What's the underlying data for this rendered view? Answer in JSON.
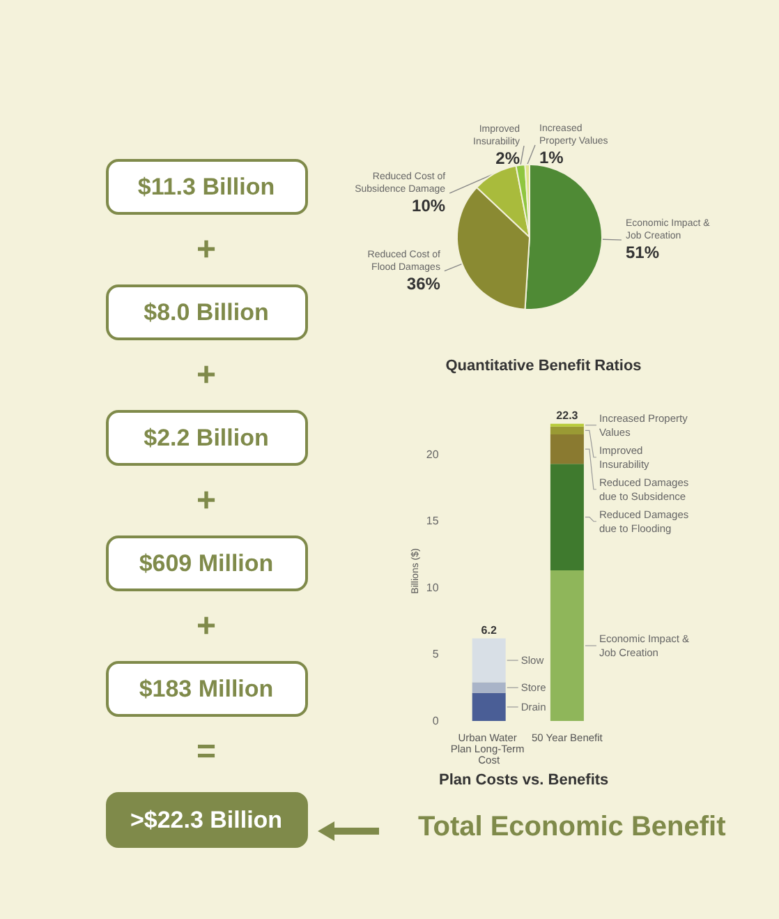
{
  "chart_data": [
    {
      "type": "other",
      "annotations": [
        "$11.3 Billion",
        "+",
        "$8.0 Billion",
        "+",
        "$2.2 Billion",
        "+",
        "$609 Million",
        "+",
        "$183 Million",
        "=",
        ">$22.3 Billion",
        "Total Economic Benefit"
      ]
    },
    {
      "type": "pie",
      "title": "Quantitative Benefit Ratios",
      "categories": [
        "Economic Impact & Job Creation",
        "Reduced Cost of Flood Damages",
        "Reduced Cost of Subsidence Damage",
        "Improved Insurability",
        "Increased Property Values"
      ],
      "values": [
        51,
        36,
        10,
        2,
        1
      ],
      "value_labels": [
        "51%",
        "36%",
        "10%",
        "2%",
        "1%"
      ],
      "colors": [
        "#4f8a35",
        "#8a8a32",
        "#a9bb3c",
        "#8fc640",
        "#dfe58a"
      ],
      "legend": false
    },
    {
      "type": "bar",
      "stacked": true,
      "title": "Plan Costs vs. Benefits",
      "ylabel": "Billions ($)",
      "categories": [
        "Urban Water Plan Long-Term Cost",
        "50 Year Benefit"
      ],
      "ylim": [
        0,
        22.5
      ],
      "yticks": [
        0,
        5,
        10,
        15,
        20
      ],
      "totals": [
        "6.2",
        "22.3"
      ],
      "grid": false,
      "legend": false,
      "series": [
        {
          "name": "Drain",
          "color": "#4a5e96",
          "values": [
            2.1,
            null
          ]
        },
        {
          "name": "Store",
          "color": "#a9b4c8",
          "values": [
            0.8,
            null
          ]
        },
        {
          "name": "Slow",
          "color": "#d8dfe6",
          "values": [
            3.3,
            null
          ]
        },
        {
          "name": "Economic Impact & Job Creation",
          "color": "#8fb65a",
          "values": [
            null,
            11.3
          ]
        },
        {
          "name": "Reduced Damages due to Flooding",
          "color": "#3f7a2e",
          "values": [
            null,
            8.0
          ]
        },
        {
          "name": "Reduced Damages due to Subsidence",
          "color": "#8a7a30",
          "values": [
            null,
            2.2
          ]
        },
        {
          "name": "Improved Insurability",
          "color": "#9a9a34",
          "values": [
            null,
            0.6
          ]
        },
        {
          "name": "Increased Property Values",
          "color": "#b8cc3a",
          "values": [
            null,
            0.2
          ]
        }
      ]
    }
  ]
}
